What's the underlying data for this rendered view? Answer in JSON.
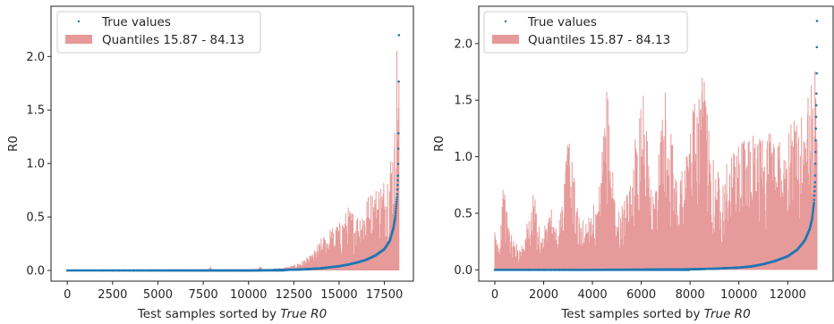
{
  "chart_data": [
    {
      "type": "area",
      "xlabel_prefix": "Test samples sorted by ",
      "xlabel_italic": "True R0",
      "ylabel": "R0",
      "xlim": [
        -900,
        19100
      ],
      "ylim": [
        -0.1,
        2.47
      ],
      "xticks": [
        0,
        2500,
        5000,
        7500,
        10000,
        12500,
        15000,
        17500
      ],
      "xtick_labels": [
        "0",
        "2500",
        "5000",
        "7500",
        "10000",
        "12500",
        "15000",
        "17500"
      ],
      "yticks": [
        0.0,
        0.5,
        1.0,
        1.5,
        2.0
      ],
      "ytick_labels": [
        "0.0",
        "0.5",
        "1.0",
        "1.5",
        "2.0"
      ],
      "grid": false,
      "legend_position": "top-left",
      "legend": [
        "True values",
        "Quantiles 15.87 - 84.13"
      ],
      "n_samples": 18300,
      "colors": {
        "true_values": "#1f77b4",
        "quantiles": "#e69a99"
      },
      "series": [
        {
          "name": "True values",
          "kind": "points",
          "x": [
            0,
            10000,
            12000,
            13000,
            14000,
            15000,
            15500,
            16000,
            16500,
            17000,
            17500,
            17800,
            18000,
            18100,
            18200,
            18250,
            18280,
            18290,
            18300
          ],
          "y": [
            0.0,
            0.0,
            0.005,
            0.01,
            0.02,
            0.04,
            0.055,
            0.075,
            0.1,
            0.14,
            0.2,
            0.28,
            0.4,
            0.5,
            0.7,
            0.9,
            1.3,
            1.8,
            2.2
          ]
        },
        {
          "name": "Quantiles 15.87 - 84.13",
          "kind": "band_upper",
          "x": [
            0,
            7800,
            7900,
            8000,
            10500,
            10700,
            10800,
            11000,
            12000,
            12500,
            13000,
            13500,
            14000,
            14500,
            15000,
            15500,
            16000,
            16500,
            17000,
            17500,
            17800,
            18000,
            18100,
            18200,
            18300
          ],
          "y": [
            0.01,
            0.01,
            0.05,
            0.01,
            0.01,
            0.05,
            0.01,
            0.01,
            0.03,
            0.05,
            0.1,
            0.15,
            0.3,
            0.4,
            0.45,
            0.6,
            0.55,
            0.7,
            0.8,
            0.9,
            1.1,
            1.3,
            1.4,
            2.35,
            2.0
          ]
        }
      ]
    },
    {
      "type": "area",
      "xlabel_prefix": "Test samples sorted by ",
      "xlabel_italic": "True R0",
      "ylabel": "R0",
      "xlim": [
        -660,
        13860
      ],
      "ylim": [
        -0.1,
        2.33
      ],
      "xticks": [
        0,
        2000,
        4000,
        6000,
        8000,
        10000,
        12000
      ],
      "xtick_labels": [
        "0",
        "2000",
        "4000",
        "6000",
        "8000",
        "10000",
        "12000"
      ],
      "yticks": [
        0.0,
        0.5,
        1.0,
        1.5,
        2.0
      ],
      "ytick_labels": [
        "0.0",
        "0.5",
        "1.0",
        "1.5",
        "2.0"
      ],
      "grid": false,
      "legend_position": "top-left",
      "legend": [
        "True values",
        "Quantiles 15.87 - 84.13"
      ],
      "n_samples": 13200,
      "colors": {
        "true_values": "#1f77b4",
        "quantiles": "#e69a99"
      },
      "series": [
        {
          "name": "True values",
          "kind": "points",
          "x": [
            0,
            4000,
            8000,
            9000,
            10000,
            10500,
            11000,
            11500,
            12000,
            12400,
            12700,
            12900,
            13000,
            13080,
            13120,
            13150,
            13180,
            13200
          ],
          "y": [
            0.0,
            0.0,
            0.005,
            0.01,
            0.02,
            0.03,
            0.05,
            0.08,
            0.12,
            0.18,
            0.26,
            0.36,
            0.45,
            0.6,
            0.8,
            1.2,
            1.6,
            2.2
          ]
        },
        {
          "name": "Quantiles 15.87 - 84.13",
          "kind": "band_upper",
          "x": [
            0,
            200,
            300,
            700,
            1000,
            1300,
            1600,
            1900,
            2300,
            2600,
            3000,
            3500,
            4000,
            4200,
            4600,
            5000,
            5500,
            6000,
            6500,
            7000,
            7500,
            8000,
            8600,
            9000,
            9500,
            10000,
            10500,
            11000,
            11500,
            12000,
            12500,
            12800,
            13000,
            13200
          ],
          "y": [
            0.35,
            0.25,
            0.8,
            0.3,
            0.2,
            0.4,
            0.7,
            0.3,
            0.55,
            0.35,
            1.28,
            0.4,
            0.6,
            0.5,
            1.65,
            0.5,
            0.7,
            1.73,
            0.65,
            1.6,
            0.8,
            1.35,
            1.78,
            0.9,
            0.95,
            1.1,
            1.25,
            1.2,
            1.3,
            1.35,
            1.4,
            1.5,
            1.7,
            1.8
          ]
        }
      ]
    }
  ]
}
